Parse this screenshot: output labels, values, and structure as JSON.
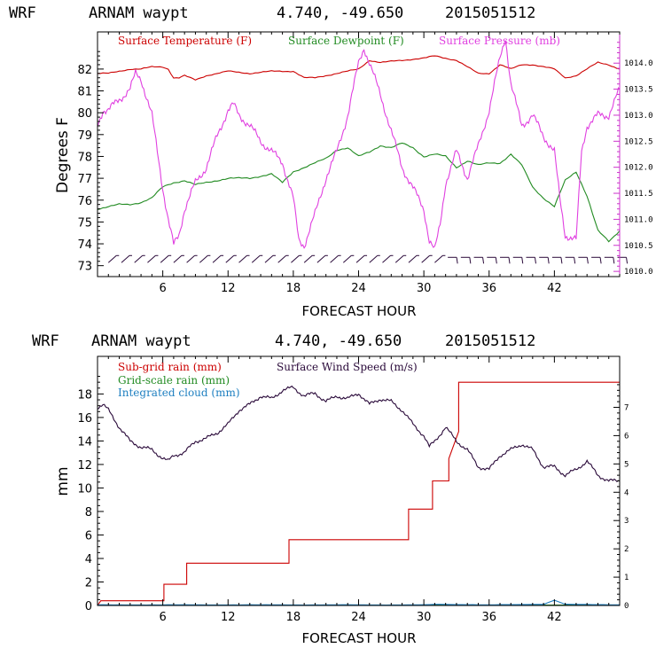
{
  "colors": {
    "temperature": "#cc0000",
    "dewpoint": "#228b22",
    "pressure": "#e040e0",
    "wind": "#2a0a3a",
    "subgrid": "#cc0000",
    "gridscale": "#228b22",
    "cloud": "#1e7fc0",
    "right_axis_pressure": "#cc33cc"
  },
  "chart_data": [
    {
      "type": "line",
      "header": {
        "model": "WRF",
        "station": "ARNAM waypt",
        "coords": "4.740, -49.650",
        "init": "2015051512"
      },
      "xlabel": "FORECAST HOUR",
      "ylabel": "Degrees F",
      "xlim": [
        0,
        48
      ],
      "ylim": [
        72.5,
        83.7
      ],
      "y2lim": [
        1009.9,
        1014.6
      ],
      "x_ticks": [
        "6",
        "12",
        "18",
        "24",
        "30",
        "36",
        "42"
      ],
      "y_ticks": [
        "73",
        "74",
        "75",
        "76",
        "77",
        "78",
        "79",
        "80",
        "81",
        "82"
      ],
      "y2_ticks": [
        "1010.0",
        "1010.5",
        "1011.0",
        "1011.5",
        "1012.0",
        "1012.5",
        "1013.0",
        "1013.5",
        "1014.0"
      ],
      "legend": [
        "Surface Temperature (F)",
        "Surface Dewpoint (F)",
        "Surface Pressure (mb)"
      ],
      "series": [
        {
          "name": "Surface Temperature (F)",
          "axis": "left",
          "x": [
            0,
            1,
            2,
            3,
            4,
            5,
            6,
            6.5,
            7,
            7.5,
            8,
            9,
            10,
            12,
            14,
            16,
            18,
            19,
            20,
            22,
            24,
            25,
            26,
            28,
            30,
            31,
            32,
            33,
            34,
            35,
            36,
            37,
            38,
            39,
            40,
            42,
            43,
            44,
            45,
            46,
            47,
            48
          ],
          "y": [
            81.8,
            81.8,
            81.9,
            82.0,
            82.0,
            82.1,
            82.1,
            82.0,
            81.6,
            81.6,
            81.7,
            81.5,
            81.7,
            81.9,
            81.8,
            81.9,
            81.9,
            81.6,
            81.6,
            81.8,
            82.0,
            82.4,
            82.3,
            82.4,
            82.5,
            82.6,
            82.5,
            82.4,
            82.1,
            81.8,
            81.8,
            82.2,
            82.0,
            82.2,
            82.2,
            82.0,
            81.6,
            81.7,
            82.0,
            82.3,
            82.2,
            82.0
          ]
        },
        {
          "name": "Surface Dewpoint (F)",
          "axis": "left",
          "x": [
            0,
            1,
            2,
            3,
            4,
            5,
            6,
            7,
            8,
            9,
            10,
            12,
            14,
            16,
            17,
            18,
            19,
            20,
            21,
            22,
            23,
            24,
            25,
            26,
            27,
            28,
            29,
            30,
            31,
            32,
            33,
            34,
            35,
            36,
            37,
            38,
            39,
            40,
            41,
            42,
            43,
            44,
            45,
            46,
            47,
            48
          ],
          "y": [
            75.6,
            75.7,
            75.8,
            75.8,
            75.9,
            76.1,
            76.6,
            76.8,
            76.9,
            76.7,
            76.8,
            77.0,
            77.0,
            77.2,
            76.8,
            77.3,
            77.5,
            77.7,
            77.9,
            78.3,
            78.4,
            78.0,
            78.2,
            78.5,
            78.4,
            78.6,
            78.4,
            78.0,
            78.1,
            78.0,
            77.5,
            77.8,
            77.6,
            77.7,
            77.7,
            78.1,
            77.6,
            76.6,
            76.1,
            75.7,
            76.9,
            77.3,
            76.2,
            74.6,
            74.1,
            74.6
          ]
        },
        {
          "name": "Surface Pressure (mb)",
          "axis": "right",
          "x": [
            0,
            0.5,
            1,
            2,
            3,
            3.5,
            4,
            5,
            6,
            6.5,
            7,
            7.5,
            8,
            9,
            10,
            11,
            12,
            12.5,
            13,
            14,
            15,
            16,
            17,
            18,
            18.5,
            19,
            20,
            21,
            22,
            23,
            24,
            24.5,
            25,
            26,
            27,
            28,
            29,
            30,
            30.5,
            31,
            31.5,
            32,
            33,
            34,
            35,
            36,
            37,
            37.5,
            38,
            39,
            40,
            41,
            42,
            42.5,
            43,
            44,
            44.5,
            45,
            46,
            47,
            48
          ],
          "y": [
            1012.8,
            1013.1,
            1013.1,
            1013.3,
            1013.5,
            1013.8,
            1013.7,
            1013.0,
            1011.6,
            1011.0,
            1010.5,
            1010.7,
            1011.2,
            1011.7,
            1012.0,
            1012.6,
            1013.1,
            1013.2,
            1013.0,
            1012.8,
            1012.5,
            1012.3,
            1012.1,
            1011.4,
            1010.6,
            1010.5,
            1011.1,
            1011.8,
            1012.3,
            1013.0,
            1014.0,
            1014.3,
            1014.0,
            1013.4,
            1012.7,
            1012.0,
            1011.6,
            1011.2,
            1010.6,
            1010.4,
            1010.9,
            1011.7,
            1012.3,
            1011.8,
            1012.4,
            1013.1,
            1014.1,
            1014.5,
            1013.6,
            1012.8,
            1013.0,
            1012.6,
            1012.3,
            1011.4,
            1010.7,
            1010.6,
            1012.3,
            1012.8,
            1013.0,
            1013.0,
            1013.5
          ]
        }
      ],
      "wind_barbs": {
        "x_start": 1,
        "x_end": 48,
        "step": 1.2,
        "level": 73.3
      }
    },
    {
      "type": "line",
      "header": {
        "model": "WRF",
        "station": "ARNAM waypt",
        "coords": "4.740, -49.650",
        "init": "2015051512"
      },
      "xlabel": "FORECAST HOUR",
      "ylabel": "mm",
      "xlim": [
        0,
        48
      ],
      "ylim": [
        0,
        21.2
      ],
      "y2lim": [
        0,
        8.8
      ],
      "x_ticks": [
        "6",
        "12",
        "18",
        "24",
        "30",
        "36",
        "42"
      ],
      "y_ticks": [
        "0",
        "2",
        "4",
        "6",
        "8",
        "10",
        "12",
        "14",
        "16",
        "18"
      ],
      "y2_ticks": [
        "0",
        "1",
        "2",
        "3",
        "4",
        "5",
        "6",
        "7"
      ],
      "legend": [
        "Sub-grid rain (mm)",
        "Surface Wind Speed (m/s)",
        "Grid-scale rain (mm)",
        "Integrated cloud (mm)"
      ],
      "series": [
        {
          "name": "Sub-grid rain (mm)",
          "axis": "left",
          "step": true,
          "x": [
            0,
            0.3,
            6.1,
            6.1,
            8.2,
            8.2,
            17.6,
            17.6,
            28.6,
            28.6,
            30.8,
            30.8,
            32.3,
            32.3,
            33.2,
            33.2,
            48
          ],
          "y": [
            0,
            0.4,
            0.4,
            1.8,
            1.8,
            3.6,
            3.6,
            5.6,
            5.6,
            8.2,
            8.2,
            10.6,
            10.6,
            12.5,
            14.8,
            19.0,
            19.0
          ]
        },
        {
          "name": "Surface Wind Speed (m/s)",
          "axis": "right",
          "x": [
            0,
            0.5,
            1,
            2,
            3,
            4,
            5,
            6,
            6.5,
            7,
            8,
            9,
            10,
            11,
            12,
            13,
            14,
            15,
            16,
            17,
            18,
            19,
            20,
            21,
            22,
            23,
            24,
            25,
            26,
            27,
            28,
            29,
            30,
            30.5,
            31,
            32,
            33,
            34,
            35,
            36,
            37,
            38,
            39,
            40,
            41,
            42,
            43,
            44,
            45,
            46,
            47,
            48
          ],
          "y": [
            7.0,
            7.1,
            6.9,
            6.3,
            5.8,
            5.6,
            5.5,
            5.2,
            5.1,
            5.3,
            5.4,
            5.8,
            5.9,
            6.1,
            6.4,
            6.9,
            7.1,
            7.4,
            7.3,
            7.6,
            7.7,
            7.4,
            7.5,
            7.2,
            7.4,
            7.3,
            7.5,
            7.1,
            7.3,
            7.2,
            6.9,
            6.4,
            6.0,
            5.6,
            5.8,
            6.3,
            5.8,
            5.5,
            4.9,
            4.8,
            5.3,
            5.5,
            5.7,
            5.5,
            4.9,
            4.9,
            4.6,
            4.8,
            5.1,
            4.6,
            4.4,
            4.4
          ]
        },
        {
          "name": "Grid-scale rain (mm)",
          "axis": "left",
          "x": [
            0,
            48
          ],
          "y": [
            0.03,
            0.03
          ]
        },
        {
          "name": "Integrated cloud (mm)",
          "axis": "left",
          "x": [
            0,
            30,
            31,
            36,
            41,
            42,
            43,
            48
          ],
          "y": [
            0.05,
            0.05,
            0.1,
            0.05,
            0.1,
            0.45,
            0.1,
            0.05
          ]
        }
      ]
    }
  ]
}
